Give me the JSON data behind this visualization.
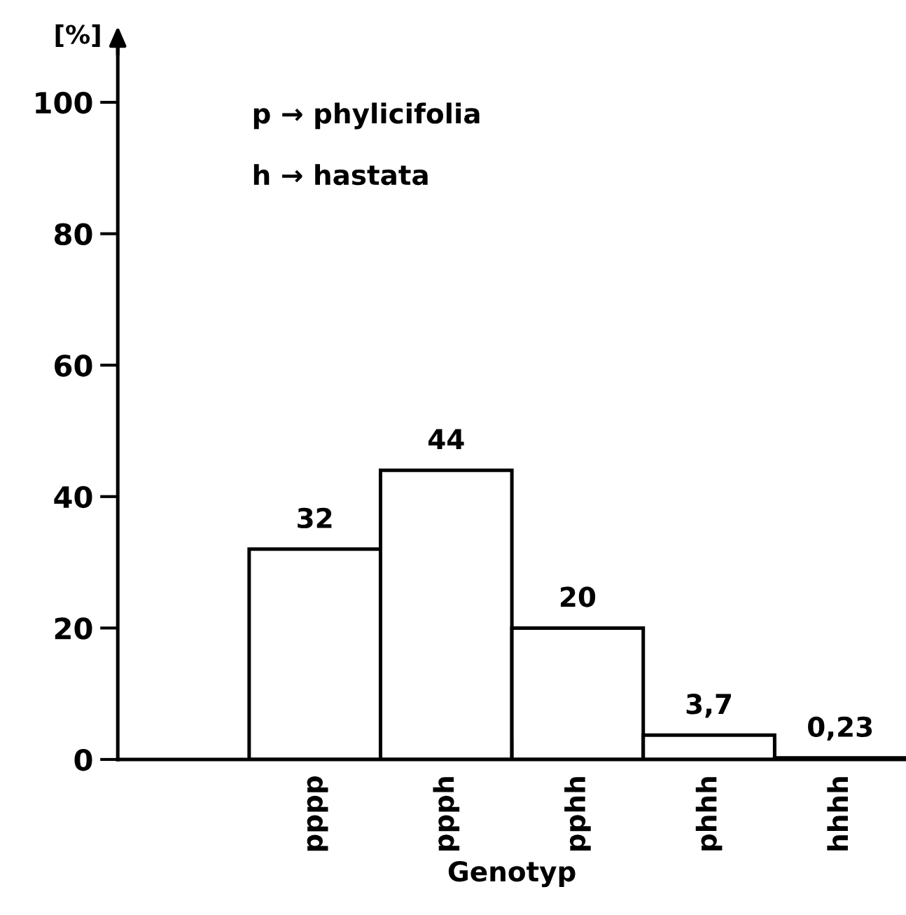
{
  "chart_data": {
    "type": "bar",
    "ylabel": "[%]",
    "xlabel": "Genotyp",
    "categories": [
      null,
      "pppp",
      "ppph",
      "pphh",
      "phhh",
      "hhhh"
    ],
    "values": [
      null,
      32,
      44,
      20,
      3.7,
      0.23
    ],
    "value_labels": [
      null,
      "32",
      "44",
      "20",
      "3,7",
      "0,23"
    ],
    "color": "#ffffff",
    "ylim": [
      0,
      110
    ],
    "yticks": [
      0,
      20,
      40,
      60,
      80,
      100
    ],
    "grid": false,
    "legend": false,
    "annotations": [
      "p → phylicifolia",
      "h → hastata"
    ]
  }
}
